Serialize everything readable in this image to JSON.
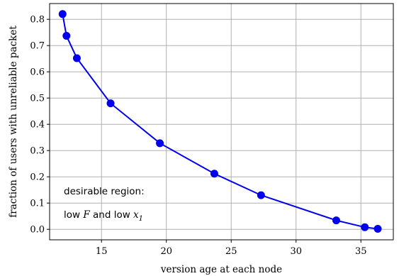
{
  "chart_data": {
    "type": "line",
    "xlabel": "version age at each node",
    "ylabel": "fraction of users with unreliable packet",
    "xlim": [
      11,
      37.5
    ],
    "ylim": [
      -0.04,
      0.86
    ],
    "x_ticks": [
      15,
      20,
      25,
      30,
      35
    ],
    "x_tick_labels": [
      "15",
      "20",
      "25",
      "30",
      "35"
    ],
    "y_ticks": [
      0.0,
      0.1,
      0.2,
      0.3,
      0.4,
      0.5,
      0.6,
      0.7,
      0.8
    ],
    "y_tick_labels": [
      "0.0",
      "0.1",
      "0.2",
      "0.3",
      "0.4",
      "0.5",
      "0.6",
      "0.7",
      "0.8"
    ],
    "grid": true,
    "color": "#0000ee",
    "series": [
      {
        "x": [
          12.0,
          12.3,
          13.1,
          15.7,
          19.5,
          23.7,
          27.3,
          33.1,
          35.3,
          36.3
        ],
        "y": [
          0.82,
          0.737,
          0.652,
          0.48,
          0.328,
          0.212,
          0.13,
          0.034,
          0.008,
          0.002
        ]
      }
    ],
    "annotation": {
      "line1": "desirable region:",
      "line2_prefix": "low ",
      "line2_var1": "F",
      "line2_mid": " and low ",
      "line2_var2": "x",
      "line2_sub": "1"
    }
  }
}
